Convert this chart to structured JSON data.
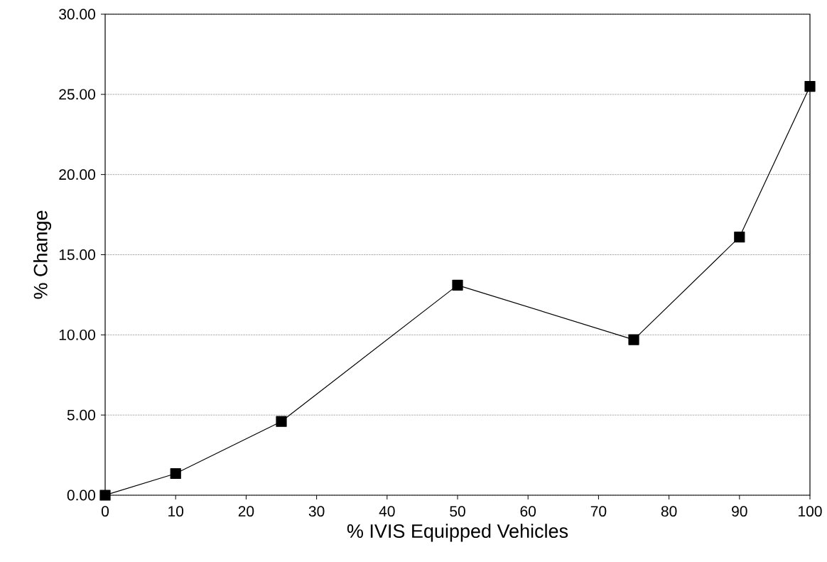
{
  "chart_data": {
    "type": "line",
    "xlabel": "% IVIS Equipped Vehicles",
    "ylabel": "% Change",
    "x": [
      0,
      10,
      25,
      50,
      75,
      90,
      100
    ],
    "series": [
      {
        "color": "#000000",
        "values": [
          0,
          1.35,
          4.6,
          13.1,
          9.7,
          16.1,
          25.5
        ]
      }
    ],
    "xlim": [
      0,
      100
    ],
    "xticks": [
      0,
      10,
      20,
      30,
      40,
      50,
      60,
      70,
      80,
      90,
      100
    ],
    "ylim": [
      0,
      30
    ],
    "yticks": [
      {
        "value": 0,
        "label": "0.00"
      },
      {
        "value": 5,
        "label": "5.00"
      },
      {
        "value": 10,
        "label": "10.00"
      },
      {
        "value": 15,
        "label": "15.00"
      },
      {
        "value": 20,
        "label": "20.00"
      },
      {
        "value": 25,
        "label": "25.00"
      },
      {
        "value": 30,
        "label": "30.00"
      }
    ],
    "grid": "y",
    "marker": "square",
    "line_style": "solid"
  }
}
